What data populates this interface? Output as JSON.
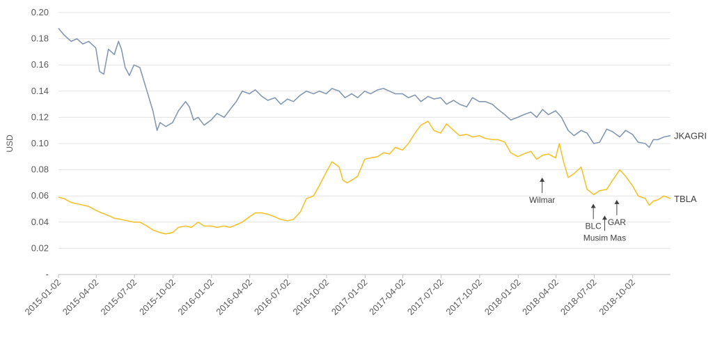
{
  "chart_data": {
    "type": "line",
    "ylabel": "USD",
    "ylim": [
      0,
      0.2
    ],
    "xlim": [
      "2015-01-02",
      "2018-12-31"
    ],
    "grid": "horizontal",
    "yticks": [
      {
        "value": 0,
        "label": "-"
      },
      {
        "value": 0.02,
        "label": "0.02"
      },
      {
        "value": 0.04,
        "label": "0.04"
      },
      {
        "value": 0.06,
        "label": "0.06"
      },
      {
        "value": 0.08,
        "label": "0.08"
      },
      {
        "value": 0.1,
        "label": "0.10"
      },
      {
        "value": 0.12,
        "label": "0.12"
      },
      {
        "value": 0.14,
        "label": "0.14"
      },
      {
        "value": 0.16,
        "label": "0.16"
      },
      {
        "value": 0.18,
        "label": "0.18"
      },
      {
        "value": 0.2,
        "label": "0.20"
      }
    ],
    "xticks": [
      "2015-01-02",
      "2015-04-02",
      "2015-07-02",
      "2015-10-02",
      "2016-01-02",
      "2016-04-02",
      "2016-07-02",
      "2016-10-02",
      "2017-01-02",
      "2017-04-02",
      "2017-07-02",
      "2017-10-02",
      "2018-01-02",
      "2018-04-02",
      "2018-07-02",
      "2018-10-02"
    ],
    "series": [
      {
        "name": "JKAGRI",
        "color": "#8497b0",
        "points": [
          [
            "2015-01-02",
            0.188
          ],
          [
            "2015-01-15",
            0.183
          ],
          [
            "2015-02-01",
            0.178
          ],
          [
            "2015-02-15",
            0.18
          ],
          [
            "2015-03-01",
            0.176
          ],
          [
            "2015-03-15",
            0.178
          ],
          [
            "2015-04-01",
            0.173
          ],
          [
            "2015-04-10",
            0.155
          ],
          [
            "2015-04-20",
            0.153
          ],
          [
            "2015-05-01",
            0.172
          ],
          [
            "2015-05-15",
            0.168
          ],
          [
            "2015-05-25",
            0.178
          ],
          [
            "2015-06-01",
            0.172
          ],
          [
            "2015-06-10",
            0.158
          ],
          [
            "2015-06-20",
            0.152
          ],
          [
            "2015-07-01",
            0.16
          ],
          [
            "2015-07-15",
            0.158
          ],
          [
            "2015-08-01",
            0.14
          ],
          [
            "2015-08-15",
            0.125
          ],
          [
            "2015-08-25",
            0.11
          ],
          [
            "2015-09-01",
            0.116
          ],
          [
            "2015-09-15",
            0.113
          ],
          [
            "2015-10-01",
            0.116
          ],
          [
            "2015-10-15",
            0.125
          ],
          [
            "2015-11-01",
            0.132
          ],
          [
            "2015-11-10",
            0.128
          ],
          [
            "2015-11-20",
            0.118
          ],
          [
            "2015-12-01",
            0.12
          ],
          [
            "2015-12-15",
            0.114
          ],
          [
            "2016-01-01",
            0.118
          ],
          [
            "2016-01-15",
            0.123
          ],
          [
            "2016-02-01",
            0.12
          ],
          [
            "2016-02-15",
            0.126
          ],
          [
            "2016-03-01",
            0.132
          ],
          [
            "2016-03-15",
            0.14
          ],
          [
            "2016-04-01",
            0.138
          ],
          [
            "2016-04-15",
            0.141
          ],
          [
            "2016-05-01",
            0.136
          ],
          [
            "2016-05-15",
            0.133
          ],
          [
            "2016-06-01",
            0.135
          ],
          [
            "2016-06-15",
            0.13
          ],
          [
            "2016-07-01",
            0.134
          ],
          [
            "2016-07-15",
            0.132
          ],
          [
            "2016-08-01",
            0.137
          ],
          [
            "2016-08-15",
            0.14
          ],
          [
            "2016-09-01",
            0.138
          ],
          [
            "2016-09-15",
            0.14
          ],
          [
            "2016-10-01",
            0.138
          ],
          [
            "2016-10-15",
            0.142
          ],
          [
            "2016-11-01",
            0.14
          ],
          [
            "2016-11-15",
            0.135
          ],
          [
            "2016-12-01",
            0.138
          ],
          [
            "2016-12-15",
            0.135
          ],
          [
            "2017-01-01",
            0.14
          ],
          [
            "2017-01-15",
            0.138
          ],
          [
            "2017-02-01",
            0.141
          ],
          [
            "2017-02-15",
            0.142
          ],
          [
            "2017-03-01",
            0.14
          ],
          [
            "2017-03-15",
            0.138
          ],
          [
            "2017-04-01",
            0.138
          ],
          [
            "2017-04-15",
            0.135
          ],
          [
            "2017-05-01",
            0.137
          ],
          [
            "2017-05-15",
            0.132
          ],
          [
            "2017-06-01",
            0.136
          ],
          [
            "2017-06-15",
            0.134
          ],
          [
            "2017-07-01",
            0.135
          ],
          [
            "2017-07-15",
            0.13
          ],
          [
            "2017-08-01",
            0.133
          ],
          [
            "2017-08-15",
            0.13
          ],
          [
            "2017-09-01",
            0.128
          ],
          [
            "2017-09-15",
            0.135
          ],
          [
            "2017-10-01",
            0.132
          ],
          [
            "2017-10-15",
            0.132
          ],
          [
            "2017-11-01",
            0.13
          ],
          [
            "2017-11-15",
            0.126
          ],
          [
            "2017-12-01",
            0.122
          ],
          [
            "2017-12-15",
            0.118
          ],
          [
            "2018-01-01",
            0.12
          ],
          [
            "2018-01-15",
            0.122
          ],
          [
            "2018-02-01",
            0.124
          ],
          [
            "2018-02-15",
            0.12
          ],
          [
            "2018-03-01",
            0.126
          ],
          [
            "2018-03-15",
            0.122
          ],
          [
            "2018-04-01",
            0.125
          ],
          [
            "2018-04-15",
            0.12
          ],
          [
            "2018-05-01",
            0.11
          ],
          [
            "2018-05-15",
            0.106
          ],
          [
            "2018-06-01",
            0.11
          ],
          [
            "2018-06-15",
            0.108
          ],
          [
            "2018-07-01",
            0.1
          ],
          [
            "2018-07-15",
            0.101
          ],
          [
            "2018-08-01",
            0.111
          ],
          [
            "2018-08-15",
            0.109
          ],
          [
            "2018-09-01",
            0.105
          ],
          [
            "2018-09-15",
            0.11
          ],
          [
            "2018-10-01",
            0.107
          ],
          [
            "2018-10-15",
            0.101
          ],
          [
            "2018-11-01",
            0.1
          ],
          [
            "2018-11-10",
            0.097
          ],
          [
            "2018-11-20",
            0.103
          ],
          [
            "2018-12-01",
            0.103
          ],
          [
            "2018-12-15",
            0.105
          ],
          [
            "2018-12-31",
            0.106
          ]
        ]
      },
      {
        "name": "TBLA",
        "color": "#f5c12b",
        "points": [
          [
            "2015-01-02",
            0.059
          ],
          [
            "2015-01-15",
            0.058
          ],
          [
            "2015-02-01",
            0.055
          ],
          [
            "2015-02-15",
            0.054
          ],
          [
            "2015-03-01",
            0.053
          ],
          [
            "2015-03-15",
            0.052
          ],
          [
            "2015-04-01",
            0.049
          ],
          [
            "2015-04-15",
            0.047
          ],
          [
            "2015-05-01",
            0.045
          ],
          [
            "2015-05-15",
            0.043
          ],
          [
            "2015-06-01",
            0.042
          ],
          [
            "2015-06-15",
            0.041
          ],
          [
            "2015-07-01",
            0.04
          ],
          [
            "2015-07-15",
            0.04
          ],
          [
            "2015-08-01",
            0.037
          ],
          [
            "2015-08-15",
            0.034
          ],
          [
            "2015-09-01",
            0.032
          ],
          [
            "2015-09-15",
            0.031
          ],
          [
            "2015-10-01",
            0.032
          ],
          [
            "2015-10-15",
            0.036
          ],
          [
            "2015-11-01",
            0.037
          ],
          [
            "2015-11-15",
            0.036
          ],
          [
            "2015-12-01",
            0.04
          ],
          [
            "2015-12-15",
            0.037
          ],
          [
            "2016-01-01",
            0.037
          ],
          [
            "2016-01-15",
            0.036
          ],
          [
            "2016-02-01",
            0.037
          ],
          [
            "2016-02-15",
            0.036
          ],
          [
            "2016-03-01",
            0.038
          ],
          [
            "2016-03-15",
            0.04
          ],
          [
            "2016-04-01",
            0.044
          ],
          [
            "2016-04-15",
            0.047
          ],
          [
            "2016-05-01",
            0.047
          ],
          [
            "2016-05-15",
            0.046
          ],
          [
            "2016-06-01",
            0.044
          ],
          [
            "2016-06-15",
            0.042
          ],
          [
            "2016-07-01",
            0.041
          ],
          [
            "2016-07-15",
            0.042
          ],
          [
            "2016-08-01",
            0.048
          ],
          [
            "2016-08-15",
            0.058
          ],
          [
            "2016-09-01",
            0.06
          ],
          [
            "2016-09-15",
            0.068
          ],
          [
            "2016-10-01",
            0.078
          ],
          [
            "2016-10-15",
            0.086
          ],
          [
            "2016-11-01",
            0.082
          ],
          [
            "2016-11-10",
            0.072
          ],
          [
            "2016-11-20",
            0.07
          ],
          [
            "2016-12-01",
            0.072
          ],
          [
            "2016-12-15",
            0.075
          ],
          [
            "2017-01-01",
            0.088
          ],
          [
            "2017-01-15",
            0.089
          ],
          [
            "2017-02-01",
            0.09
          ],
          [
            "2017-02-15",
            0.093
          ],
          [
            "2017-03-01",
            0.092
          ],
          [
            "2017-03-15",
            0.097
          ],
          [
            "2017-04-01",
            0.095
          ],
          [
            "2017-04-15",
            0.1
          ],
          [
            "2017-05-01",
            0.108
          ],
          [
            "2017-05-15",
            0.114
          ],
          [
            "2017-06-01",
            0.117
          ],
          [
            "2017-06-15",
            0.11
          ],
          [
            "2017-07-01",
            0.108
          ],
          [
            "2017-07-15",
            0.115
          ],
          [
            "2017-08-01",
            0.11
          ],
          [
            "2017-08-15",
            0.106
          ],
          [
            "2017-09-01",
            0.107
          ],
          [
            "2017-09-15",
            0.105
          ],
          [
            "2017-10-01",
            0.106
          ],
          [
            "2017-10-15",
            0.104
          ],
          [
            "2017-11-01",
            0.103
          ],
          [
            "2017-11-15",
            0.103
          ],
          [
            "2017-12-01",
            0.101
          ],
          [
            "2017-12-15",
            0.093
          ],
          [
            "2018-01-01",
            0.09
          ],
          [
            "2018-01-15",
            0.092
          ],
          [
            "2018-02-01",
            0.094
          ],
          [
            "2018-02-15",
            0.088
          ],
          [
            "2018-03-01",
            0.091
          ],
          [
            "2018-03-15",
            0.092
          ],
          [
            "2018-04-01",
            0.089
          ],
          [
            "2018-04-10",
            0.1
          ],
          [
            "2018-04-20",
            0.086
          ],
          [
            "2018-05-01",
            0.074
          ],
          [
            "2018-05-15",
            0.077
          ],
          [
            "2018-06-01",
            0.082
          ],
          [
            "2018-06-15",
            0.065
          ],
          [
            "2018-07-01",
            0.061
          ],
          [
            "2018-07-15",
            0.064
          ],
          [
            "2018-08-01",
            0.065
          ],
          [
            "2018-08-15",
            0.072
          ],
          [
            "2018-09-01",
            0.08
          ],
          [
            "2018-09-15",
            0.075
          ],
          [
            "2018-10-01",
            0.068
          ],
          [
            "2018-10-15",
            0.06
          ],
          [
            "2018-11-01",
            0.058
          ],
          [
            "2018-11-10",
            0.053
          ],
          [
            "2018-11-20",
            0.056
          ],
          [
            "2018-12-01",
            0.057
          ],
          [
            "2018-12-15",
            0.06
          ],
          [
            "2018-12-31",
            0.058
          ]
        ]
      }
    ],
    "annotations": [
      {
        "label": "Wilmar",
        "date": "2018-02-28",
        "value": 0.074
      },
      {
        "label": "BLC",
        "date": "2018-06-30",
        "value": 0.054
      },
      {
        "label": "Musim Mas",
        "date": "2018-07-27",
        "value": 0.045
      },
      {
        "label": "GAR",
        "date": "2018-08-25",
        "value": 0.057
      }
    ]
  }
}
